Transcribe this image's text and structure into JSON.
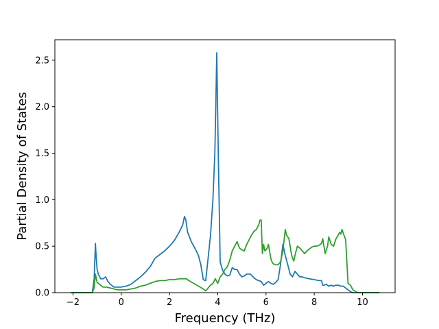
{
  "chart_data": {
    "type": "line",
    "title": "",
    "xlabel": "Frequency (THz)",
    "ylabel": "Partial Density of States",
    "xlim": [
      -2.75,
      11.35
    ],
    "ylim": [
      0.0,
      2.72
    ],
    "xticks": [
      -2,
      0,
      2,
      4,
      6,
      8,
      10
    ],
    "yticks": [
      0.0,
      0.5,
      1.0,
      1.5,
      2.0,
      2.5
    ],
    "grid": false,
    "legend": "none",
    "series": [
      {
        "color": "#1f77b4",
        "x": [
          -2.1,
          -1.2,
          -1.12,
          -1.07,
          -1.03,
          -1.0,
          -0.95,
          -0.85,
          -0.75,
          -0.65,
          -0.55,
          -0.45,
          -0.3,
          -0.15,
          0.0,
          0.2,
          0.4,
          0.6,
          0.8,
          1.0,
          1.2,
          1.4,
          1.6,
          1.8,
          2.0,
          2.2,
          2.4,
          2.55,
          2.62,
          2.68,
          2.75,
          2.9,
          3.05,
          3.2,
          3.3,
          3.4,
          3.5,
          3.6,
          3.7,
          3.8,
          3.88,
          3.92,
          3.96,
          4.02,
          4.1,
          4.2,
          4.3,
          4.4,
          4.5,
          4.6,
          4.7,
          4.8,
          4.9,
          5.0,
          5.1,
          5.2,
          5.35,
          5.5,
          5.6,
          5.7,
          5.8,
          5.9,
          6.0,
          6.1,
          6.2,
          6.3,
          6.4,
          6.5,
          6.6,
          6.7,
          6.8,
          6.9,
          7.0,
          7.1,
          7.2,
          7.3,
          7.4,
          7.5,
          7.6,
          7.8,
          8.0,
          8.2,
          8.3,
          8.35,
          8.4,
          8.5,
          8.6,
          8.7,
          8.8,
          8.9,
          9.0,
          9.1,
          9.2,
          9.3,
          9.4,
          9.5,
          9.6,
          9.8,
          10.0,
          10.7
        ],
        "y": [
          0.0,
          0.0,
          0.15,
          0.53,
          0.35,
          0.25,
          0.2,
          0.15,
          0.15,
          0.17,
          0.12,
          0.09,
          0.06,
          0.06,
          0.06,
          0.07,
          0.09,
          0.13,
          0.17,
          0.22,
          0.28,
          0.37,
          0.41,
          0.45,
          0.5,
          0.56,
          0.65,
          0.73,
          0.82,
          0.78,
          0.65,
          0.55,
          0.48,
          0.4,
          0.3,
          0.14,
          0.13,
          0.37,
          0.62,
          1.0,
          1.5,
          2.0,
          2.58,
          1.5,
          0.33,
          0.24,
          0.2,
          0.18,
          0.19,
          0.27,
          0.25,
          0.25,
          0.2,
          0.17,
          0.18,
          0.2,
          0.2,
          0.16,
          0.14,
          0.13,
          0.12,
          0.08,
          0.1,
          0.12,
          0.1,
          0.09,
          0.11,
          0.14,
          0.3,
          0.52,
          0.4,
          0.3,
          0.2,
          0.17,
          0.23,
          0.2,
          0.17,
          0.17,
          0.16,
          0.15,
          0.14,
          0.13,
          0.13,
          0.08,
          0.08,
          0.09,
          0.07,
          0.08,
          0.07,
          0.08,
          0.08,
          0.07,
          0.07,
          0.05,
          0.03,
          0.01,
          0.0,
          0.0,
          0.0,
          0.0
        ]
      },
      {
        "color": "#2ca02c",
        "x": [
          -2.1,
          -1.2,
          -1.12,
          -1.07,
          -1.03,
          -1.0,
          -0.95,
          -0.85,
          -0.75,
          -0.6,
          -0.45,
          -0.3,
          -0.15,
          0.0,
          0.2,
          0.4,
          0.6,
          0.8,
          1.0,
          1.2,
          1.4,
          1.6,
          1.8,
          2.0,
          2.2,
          2.4,
          2.6,
          2.7,
          2.8,
          3.0,
          3.2,
          3.4,
          3.5,
          3.6,
          3.7,
          3.8,
          3.9,
          4.0,
          4.1,
          4.2,
          4.3,
          4.4,
          4.5,
          4.6,
          4.7,
          4.8,
          4.9,
          5.0,
          5.1,
          5.2,
          5.3,
          5.4,
          5.5,
          5.6,
          5.7,
          5.75,
          5.8,
          5.85,
          5.9,
          5.95,
          6.0,
          6.05,
          6.1,
          6.15,
          6.2,
          6.25,
          6.3,
          6.4,
          6.5,
          6.6,
          6.7,
          6.8,
          6.85,
          6.95,
          7.0,
          7.05,
          7.1,
          7.15,
          7.2,
          7.3,
          7.4,
          7.5,
          7.6,
          7.7,
          7.8,
          7.9,
          8.0,
          8.1,
          8.2,
          8.3,
          8.35,
          8.45,
          8.55,
          8.6,
          8.7,
          8.8,
          8.9,
          9.0,
          9.05,
          9.1,
          9.15,
          9.2,
          9.3,
          9.4,
          9.5,
          9.6,
          9.8,
          10.0,
          10.7
        ],
        "y": [
          0.0,
          0.0,
          0.05,
          0.2,
          0.15,
          0.11,
          0.1,
          0.08,
          0.06,
          0.06,
          0.05,
          0.04,
          0.03,
          0.03,
          0.03,
          0.04,
          0.05,
          0.07,
          0.08,
          0.1,
          0.12,
          0.13,
          0.13,
          0.14,
          0.14,
          0.15,
          0.15,
          0.15,
          0.13,
          0.1,
          0.07,
          0.04,
          0.02,
          0.05,
          0.08,
          0.1,
          0.15,
          0.1,
          0.17,
          0.2,
          0.25,
          0.28,
          0.35,
          0.45,
          0.5,
          0.55,
          0.48,
          0.46,
          0.45,
          0.52,
          0.57,
          0.62,
          0.66,
          0.68,
          0.73,
          0.78,
          0.78,
          0.42,
          0.52,
          0.45,
          0.46,
          0.48,
          0.52,
          0.44,
          0.37,
          0.33,
          0.31,
          0.3,
          0.3,
          0.33,
          0.45,
          0.68,
          0.62,
          0.58,
          0.5,
          0.42,
          0.37,
          0.34,
          0.4,
          0.5,
          0.48,
          0.45,
          0.42,
          0.45,
          0.47,
          0.49,
          0.5,
          0.5,
          0.51,
          0.53,
          0.58,
          0.42,
          0.5,
          0.6,
          0.52,
          0.5,
          0.58,
          0.62,
          0.65,
          0.63,
          0.68,
          0.64,
          0.57,
          0.1,
          0.08,
          0.03,
          0.0,
          0.0,
          0.0
        ]
      }
    ]
  }
}
